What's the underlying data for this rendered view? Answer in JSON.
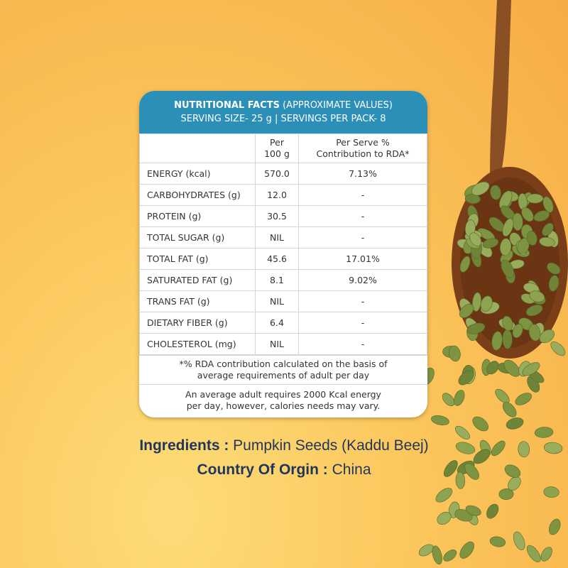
{
  "nutrition": {
    "header_line1_bold": "NUTRITIONAL FACTS",
    "header_line1_rest": "(APPROXIMATE VALUES)",
    "header_line2": "SERVING SIZE- 25 g | SERVINGS PER PACK- 8",
    "col_per100_l1": "Per",
    "col_per100_l2": "100 g",
    "col_rda_l1": "Per Serve %",
    "col_rda_l2": "Contribution to RDA*",
    "rows": [
      {
        "name": "ENERGY (kcal)",
        "per100": "570.0",
        "rda": "7.13%"
      },
      {
        "name": "CARBOHYDRATES (g)",
        "per100": "12.0",
        "rda": "-"
      },
      {
        "name": "PROTEIN (g)",
        "per100": "30.5",
        "rda": "-"
      },
      {
        "name": "TOTAL SUGAR (g)",
        "per100": "NIL",
        "rda": "-"
      },
      {
        "name": "TOTAL FAT (g)",
        "per100": "45.6",
        "rda": "17.01%"
      },
      {
        "name": "SATURATED FAT (g)",
        "per100": "8.1",
        "rda": "9.02%"
      },
      {
        "name": "TRANS FAT (g)",
        "per100": "NIL",
        "rda": "-"
      },
      {
        "name": "DIETARY FIBER (g)",
        "per100": "6.4",
        "rda": "-"
      },
      {
        "name": "CHOLESTEROL (mg)",
        "per100": "NIL",
        "rda": "-"
      }
    ],
    "note1_l1": "*% RDA contribution calculated on the basis of",
    "note1_l2": "average requirements of adult per day",
    "note2_l1": "An average adult requires 2000 Kcal energy",
    "note2_l2": "per day, however, calories needs may vary."
  },
  "ingredients": {
    "label": "Ingredients :",
    "value": "Pumpkin Seeds (Kaddu Beej)"
  },
  "origin": {
    "label": "Country Of Orgin :",
    "value": "China"
  },
  "colors": {
    "header": "#2b8fb8",
    "footer_text": "#22365a",
    "background": "#fbc65c",
    "seed": "#7f9440",
    "spoon": "#8a4f22"
  }
}
